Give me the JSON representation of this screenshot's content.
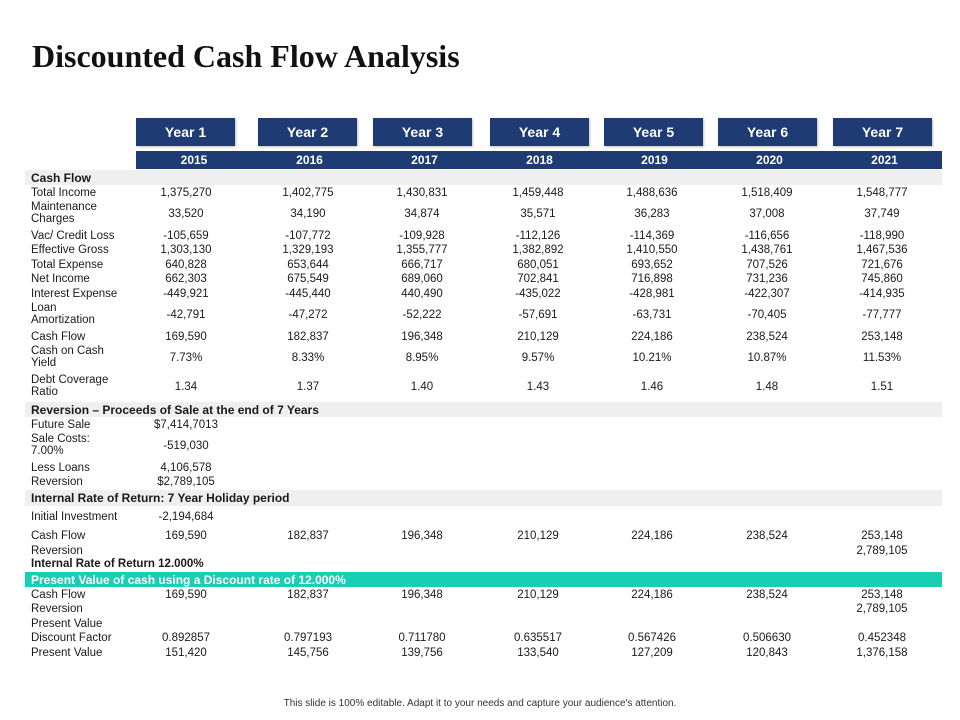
{
  "title": "Discounted Cash Flow Analysis",
  "years": [
    "Year 1",
    "Year 2",
    "Year 3",
    "Year 4",
    "Year 5",
    "Year 6",
    "Year 7"
  ],
  "dates": [
    "2015",
    "2016",
    "2017",
    "2018",
    "2019",
    "2020",
    "2021"
  ],
  "sections": {
    "cash_flow": "Cash Flow",
    "reversion": "Reversion – Proceeds of Sale at the end of 7 Years",
    "irr": "Internal Rate of Return: 7 Year Holiday period",
    "pv": "Present Value of cash using  a Discount  rate of 12.000%"
  },
  "rows": [
    {
      "label": [
        "Total Income"
      ],
      "values": [
        "1,375,270",
        "1,402,775",
        "1,430,831",
        "1,459,448",
        "1,488,636",
        "1,518,409",
        "1,548,777"
      ]
    },
    {
      "label": [
        "Maintenance",
        "Charges"
      ],
      "values": [
        "33,520",
        "34,190",
        "34,874",
        "35,571",
        "36,283",
        "37,008",
        "37,749"
      ]
    },
    {
      "label": [
        "Vac/ Credit Loss"
      ],
      "values": [
        "-105,659",
        "-107,772",
        "-109,928",
        "-112,126",
        "-114,369",
        "-116,656",
        "-118,990"
      ]
    },
    {
      "label": [
        "Effective Gross"
      ],
      "values": [
        "1,303,130",
        "1,329,193",
        "1,355,777",
        "1,382,892",
        "1,410,550",
        "1,438,761",
        "1,467,536"
      ]
    },
    {
      "label": [
        "Total Expense"
      ],
      "values": [
        "640,828",
        "653,644",
        "666,717",
        "680,051",
        "693,652",
        "707,526",
        "721,676"
      ]
    },
    {
      "label": [
        "Net Income"
      ],
      "values": [
        "662,303",
        "675,549",
        "689,060",
        "702,841",
        "716,898",
        "731,236",
        "745,860"
      ]
    },
    {
      "label": [
        "Interest Expense"
      ],
      "values": [
        "-449,921",
        "-445,440",
        "440,490",
        "-435,022",
        "-428,981",
        "-422,307",
        "-414,935"
      ]
    },
    {
      "label": [
        "Loan",
        "Amortization"
      ],
      "values": [
        "-42,791",
        "-47,272",
        "-52,222",
        "-57,691",
        "-63,731",
        "-70,405",
        "-77,777"
      ]
    },
    {
      "label": [
        "Cash Flow"
      ],
      "values": [
        "169,590",
        "182,837",
        "196,348",
        "210,129",
        "224,186",
        "238,524",
        "253,148"
      ]
    },
    {
      "label": [
        "Cash on Cash",
        "Yield"
      ],
      "values": [
        "7.73%",
        "8.33%",
        "8.95%",
        "9.57%",
        "10.21%",
        "10.87%",
        "11.53%"
      ]
    },
    {
      "label": [
        "Debt Coverage",
        "Ratio"
      ],
      "values": [
        "1.34",
        "1.37",
        "1.40",
        "1.43",
        "1.46",
        "1.48",
        "1.51"
      ]
    }
  ],
  "reversion_rows": [
    {
      "label": [
        "Future Sale"
      ],
      "value": "$7,414,7013"
    },
    {
      "label": [
        "Sale Costs:",
        "7.00%"
      ],
      "value": "-519,030"
    },
    {
      "label": [
        "Less Loans"
      ],
      "value": "4,106,578"
    },
    {
      "label": [
        "Reversion"
      ],
      "value": "$2,789,105"
    }
  ],
  "irr": {
    "initial_label": "Initial Investment",
    "initial_value": "-2,194,684",
    "cashflow_label": "Cash Flow",
    "cashflow_values": [
      "169,590",
      "182,837",
      "196,348",
      "210,129",
      "224,186",
      "238,524",
      "253,148"
    ],
    "reversion_label": "Reversion",
    "reversion_value": "2,789,105",
    "rate_label": "Internal Rate of Return 12.000%"
  },
  "pv": {
    "cashflow_label": "Cash Flow",
    "cashflow_values": [
      "169,590",
      "182,837",
      "196,348",
      "210,129",
      "224,186",
      "238,524",
      "253,148"
    ],
    "reversion_label": "Reversion",
    "reversion_value": "2,789,105",
    "present_value_header": "Present Value",
    "discount_label": "Discount Factor",
    "discount_values": [
      "0.892857",
      "0.797193",
      "0.711780",
      "0.635517",
      "0.567426",
      "0.506630",
      "0.452348"
    ],
    "pv_label": "Present Value",
    "pv_values": [
      "151,420",
      "145,756",
      "139,756",
      "133,540",
      "127,209",
      "120,843",
      "1,376,158"
    ]
  },
  "footer": "This slide is 100% editable. Adapt it to your needs and capture your audience's attention.",
  "colors": {
    "navy": "#1f3b73",
    "teal": "#17d0b3",
    "band": "#efefef"
  }
}
